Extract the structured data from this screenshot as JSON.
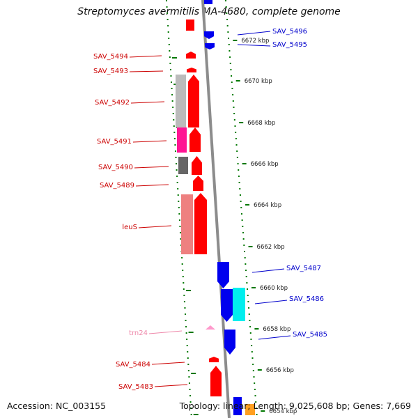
{
  "header": {
    "title": "Streptomyces avermitilis MA-4680, complete genome"
  },
  "footer": {
    "accession": "Accession: NC_003155",
    "stats": "Topology: linear; Length: 9,025,608 bp; Genes: 7,669"
  },
  "colors": {
    "forward": "#ff0000",
    "reverse": "#0000ee",
    "backbone": "#8c8c8c",
    "forward_label": "#cc0000",
    "reverse_label": "#0000cc",
    "rna_label": "#ee88aa",
    "tick": "#007700",
    "grey_feature": "#bbbbbb",
    "dark_grey_feature": "#666666",
    "magenta_feature": "#ff1493",
    "salmon_feature": "#ee8080",
    "cyan_feature": "#00eeee",
    "orange_feature": "#ffa020",
    "rna_feature": "#ff99cc"
  },
  "scale": {
    "unit": "kbp",
    "ticks": [
      "6672 kbp",
      "6670 kbp",
      "6668 kbp",
      "6666 kbp",
      "6664 kbp",
      "6662 kbp",
      "6660 kbp",
      "6658 kbp",
      "6656 kbp",
      "6654 kbp"
    ]
  },
  "genes": [
    {
      "label": "SAV_5496",
      "strand": "reverse"
    },
    {
      "label": "SAV_5495",
      "strand": "reverse"
    },
    {
      "label": "SAV_5494",
      "strand": "forward"
    },
    {
      "label": "SAV_5493",
      "strand": "forward"
    },
    {
      "label": "SAV_5492",
      "strand": "forward"
    },
    {
      "label": "SAV_5491",
      "strand": "forward"
    },
    {
      "label": "SAV_5490",
      "strand": "forward"
    },
    {
      "label": "SAV_5489",
      "strand": "forward"
    },
    {
      "label": "leuS",
      "strand": "forward"
    },
    {
      "label": "SAV_5487",
      "strand": "reverse"
    },
    {
      "label": "SAV_5486",
      "strand": "reverse"
    },
    {
      "label": "trn24",
      "strand": "forward",
      "kind": "rna"
    },
    {
      "label": "SAV_5485",
      "strand": "reverse"
    },
    {
      "label": "SAV_5484",
      "strand": "forward"
    },
    {
      "label": "SAV_5483",
      "strand": "forward"
    }
  ]
}
